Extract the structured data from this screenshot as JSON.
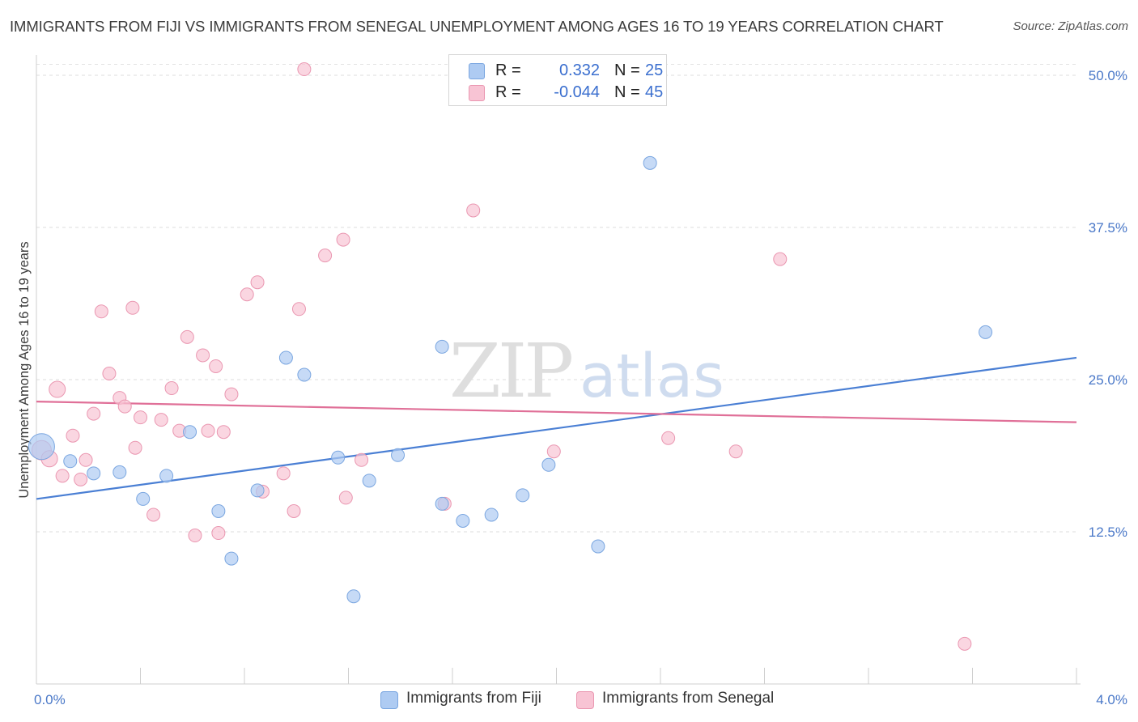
{
  "header": {
    "title": "IMMIGRANTS FROM FIJI VS IMMIGRANTS FROM SENEGAL UNEMPLOYMENT AMONG AGES 16 TO 19 YEARS CORRELATION CHART",
    "source": "Source: ZipAtlas.com"
  },
  "watermark": {
    "zip": "ZIP",
    "atlas": "atlas"
  },
  "legend": {
    "rows": [
      {
        "r_label": "R =",
        "r_value": "0.332",
        "n_label": "N =",
        "n_value": "25",
        "color": "#aecbf2",
        "border": "#7aa6e0"
      },
      {
        "r_label": "R =",
        "r_value": "-0.044",
        "n_label": "N =",
        "n_value": "45",
        "color": "#f8c4d4",
        "border": "#ea97b1"
      }
    ]
  },
  "bottom_legend": {
    "fiji": "Immigrants from Fiji",
    "senegal": "Immigrants from Senegal"
  },
  "chart_data": {
    "type": "scatter",
    "xlabel": "",
    "ylabel": "Unemployment Among Ages 16 to 19 years",
    "xlim": [
      0.0,
      4.0
    ],
    "ylim": [
      0.0,
      51.0
    ],
    "x_tick_labels": [
      "0.0%",
      "4.0%"
    ],
    "y_ticks": [
      12.5,
      25.0,
      37.5,
      50.0
    ],
    "y_tick_labels": [
      "12.5%",
      "25.0%",
      "37.5%",
      "50.0%"
    ],
    "grid": "horizontal dashed",
    "legend_position": "top-center",
    "colors": {
      "fiji": "#4a7fd4",
      "fiji_fill": "#aecbf2",
      "senegal": "#e07098",
      "senegal_fill": "#f8c4d4"
    },
    "series": [
      {
        "name": "Immigrants from Fiji",
        "trend": [
          [
            0.0,
            15.2
          ],
          [
            4.0,
            26.8
          ]
        ],
        "points": [
          [
            0.02,
            19.5,
            16
          ],
          [
            0.13,
            18.3,
            8
          ],
          [
            0.22,
            17.3,
            8
          ],
          [
            0.32,
            17.4,
            8
          ],
          [
            0.41,
            15.2,
            8
          ],
          [
            0.5,
            17.1,
            8
          ],
          [
            0.59,
            20.7,
            8
          ],
          [
            0.7,
            14.2,
            8
          ],
          [
            0.75,
            10.3,
            8
          ],
          [
            0.85,
            15.9,
            8
          ],
          [
            0.96,
            26.8,
            8
          ],
          [
            1.03,
            25.4,
            8
          ],
          [
            1.16,
            18.6,
            8
          ],
          [
            1.22,
            7.2,
            8
          ],
          [
            1.28,
            16.7,
            8
          ],
          [
            1.39,
            18.8,
            8
          ],
          [
            1.56,
            27.7,
            8
          ],
          [
            1.56,
            14.8,
            8
          ],
          [
            1.64,
            13.4,
            8
          ],
          [
            1.75,
            13.9,
            8
          ],
          [
            1.87,
            15.5,
            8
          ],
          [
            1.97,
            18.0,
            8
          ],
          [
            2.16,
            11.3,
            8
          ],
          [
            2.36,
            42.8,
            8
          ],
          [
            3.65,
            28.9,
            8
          ]
        ]
      },
      {
        "name": "Immigrants from Senegal",
        "trend": [
          [
            0.0,
            23.2
          ],
          [
            4.0,
            21.5
          ]
        ],
        "points": [
          [
            0.02,
            19.2,
            12
          ],
          [
            0.05,
            18.5,
            10
          ],
          [
            0.08,
            24.2,
            10
          ],
          [
            0.1,
            17.1,
            8
          ],
          [
            0.14,
            20.4,
            8
          ],
          [
            0.17,
            16.8,
            8
          ],
          [
            0.19,
            18.4,
            8
          ],
          [
            0.22,
            22.2,
            8
          ],
          [
            0.25,
            30.6,
            8
          ],
          [
            0.28,
            25.5,
            8
          ],
          [
            0.32,
            23.5,
            8
          ],
          [
            0.34,
            22.8,
            8
          ],
          [
            0.37,
            30.9,
            8
          ],
          [
            0.38,
            19.4,
            8
          ],
          [
            0.4,
            21.9,
            8
          ],
          [
            0.45,
            13.9,
            8
          ],
          [
            0.48,
            21.7,
            8
          ],
          [
            0.52,
            24.3,
            8
          ],
          [
            0.55,
            20.8,
            8
          ],
          [
            0.58,
            28.5,
            8
          ],
          [
            0.61,
            12.2,
            8
          ],
          [
            0.64,
            27.0,
            8
          ],
          [
            0.66,
            20.8,
            8
          ],
          [
            0.69,
            26.1,
            8
          ],
          [
            0.7,
            12.4,
            8
          ],
          [
            0.72,
            20.7,
            8
          ],
          [
            0.75,
            23.8,
            8
          ],
          [
            0.81,
            32.0,
            8
          ],
          [
            0.85,
            33.0,
            8
          ],
          [
            0.87,
            15.8,
            8
          ],
          [
            0.95,
            17.3,
            8
          ],
          [
            0.99,
            14.2,
            8
          ],
          [
            1.01,
            30.8,
            8
          ],
          [
            1.03,
            50.5,
            8
          ],
          [
            1.11,
            35.2,
            8
          ],
          [
            1.18,
            36.5,
            8
          ],
          [
            1.19,
            15.3,
            8
          ],
          [
            1.25,
            18.4,
            8
          ],
          [
            1.57,
            14.8,
            8
          ],
          [
            1.68,
            38.9,
            8
          ],
          [
            1.99,
            19.1,
            8
          ],
          [
            2.43,
            20.2,
            8
          ],
          [
            2.69,
            19.1,
            8
          ],
          [
            2.86,
            34.9,
            8
          ],
          [
            3.57,
            3.3,
            8
          ]
        ]
      }
    ]
  }
}
